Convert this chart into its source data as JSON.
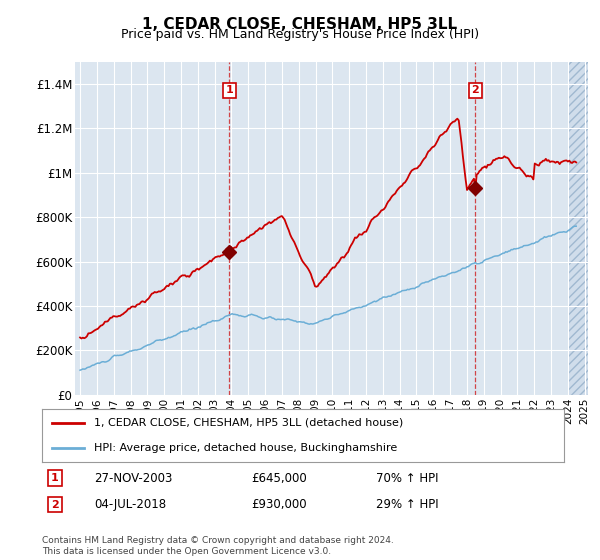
{
  "title": "1, CEDAR CLOSE, CHESHAM, HP5 3LL",
  "subtitle": "Price paid vs. HM Land Registry's House Price Index (HPI)",
  "legend_line1": "1, CEDAR CLOSE, CHESHAM, HP5 3LL (detached house)",
  "legend_line2": "HPI: Average price, detached house, Buckinghamshire",
  "footnote": "Contains HM Land Registry data © Crown copyright and database right 2024.\nThis data is licensed under the Open Government Licence v3.0.",
  "sale1_date": "27-NOV-2003",
  "sale1_price": "£645,000",
  "sale1_hpi": "70% ↑ HPI",
  "sale2_date": "04-JUL-2018",
  "sale2_price": "£930,000",
  "sale2_hpi": "29% ↑ HPI",
  "hpi_color": "#6baed6",
  "price_color": "#cc0000",
  "sale_marker_color": "#800000",
  "background_plot": "#dce6f0",
  "ylim": [
    0,
    1500000
  ],
  "yticks": [
    0,
    200000,
    400000,
    600000,
    800000,
    1000000,
    1200000,
    1400000
  ],
  "ytick_labels": [
    "£0",
    "£200K",
    "£400K",
    "£600K",
    "£800K",
    "£1M",
    "£1.2M",
    "£1.4M"
  ],
  "xstart_year": 1995,
  "xend_year": 2025
}
